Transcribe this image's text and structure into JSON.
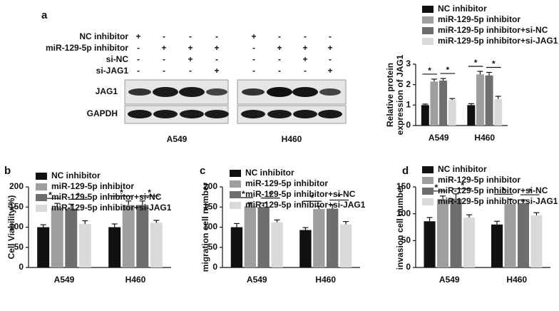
{
  "panel_labels": [
    "a",
    "b",
    "c",
    "d"
  ],
  "blot": {
    "rows": [
      {
        "label": "NC inhibitor",
        "signs": [
          "+",
          "-",
          "-",
          "-",
          "+",
          "-",
          "-",
          "-"
        ]
      },
      {
        "label": "miR-129-5p inhibitor",
        "signs": [
          "-",
          "+",
          "+",
          "+",
          "-",
          "+",
          "+",
          "+"
        ]
      },
      {
        "label": "si-NC",
        "signs": [
          "-",
          "-",
          "+",
          "-",
          "-",
          "-",
          "+",
          "-"
        ]
      },
      {
        "label": "si-JAG1",
        "signs": [
          "-",
          "-",
          "-",
          "+",
          "-",
          "-",
          "-",
          "+"
        ]
      }
    ],
    "proteins": [
      "JAG1",
      "GAPDH"
    ],
    "cell_lines": [
      "A549",
      "H460"
    ]
  },
  "chart_data": [
    {
      "type": "bar",
      "ylabel": [
        "Relative protein",
        "expression of JAG1"
      ],
      "categories": [
        "A549",
        "H460"
      ],
      "ylim": [
        0,
        3
      ],
      "yticks": [
        0,
        1,
        2,
        3
      ],
      "significance": "*",
      "series": [
        {
          "name": "NC inhibitor",
          "color": "#111111",
          "values": [
            1.0,
            1.0
          ],
          "errors": [
            0.05,
            0.07
          ]
        },
        {
          "name": "miR-129-5p inhibitor",
          "color": "#9e9e9e",
          "values": [
            2.15,
            2.5
          ],
          "errors": [
            0.12,
            0.15
          ]
        },
        {
          "name": "miR-129-5p inhibitor+si-NC",
          "color": "#6e6e6e",
          "values": [
            2.2,
            2.45
          ],
          "errors": [
            0.1,
            0.15
          ]
        },
        {
          "name": "miR-129-5p inhibitor+si-JAG1",
          "color": "#d9d9d9",
          "values": [
            1.25,
            1.3
          ],
          "errors": [
            0.07,
            0.13
          ]
        }
      ]
    },
    {
      "type": "bar",
      "ylabel": [
        "Cell Viability(%)"
      ],
      "categories": [
        "A549",
        "H460"
      ],
      "ylim": [
        0,
        200
      ],
      "yticks": [
        0,
        50,
        100,
        150,
        200
      ],
      "significance": "*",
      "series": [
        {
          "name": "NC inhibitor",
          "color": "#111111",
          "values": [
            100,
            100
          ],
          "errors": [
            6,
            8
          ]
        },
        {
          "name": "miR-129-5p inhibitor",
          "color": "#9e9e9e",
          "values": [
            148,
            155
          ],
          "errors": [
            11,
            10
          ]
        },
        {
          "name": "miR-129-5p inhibitor+si-NC",
          "color": "#6e6e6e",
          "values": [
            146,
            155
          ],
          "errors": [
            11,
            10
          ]
        },
        {
          "name": "miR-129-5p inhibitor+si-JAG1",
          "color": "#d9d9d9",
          "values": [
            108,
            111
          ],
          "errors": [
            8,
            6
          ]
        }
      ]
    },
    {
      "type": "bar",
      "ylabel": [
        "migration cell number"
      ],
      "categories": [
        "A549",
        "H460"
      ],
      "ylim": [
        0,
        200
      ],
      "yticks": [
        0,
        50,
        100,
        150,
        200
      ],
      "significance": "*",
      "series": [
        {
          "name": "NC inhibitor",
          "color": "#111111",
          "values": [
            100,
            93
          ],
          "errors": [
            9,
            6
          ]
        },
        {
          "name": "miR-129-5p inhibitor",
          "color": "#9e9e9e",
          "values": [
            152,
            145
          ],
          "errors": [
            9,
            7
          ]
        },
        {
          "name": "miR-129-5p inhibitor+si-NC",
          "color": "#6e6e6e",
          "values": [
            150,
            146
          ],
          "errors": [
            10,
            9
          ]
        },
        {
          "name": "miR-129-5p inhibitor+si-JAG1",
          "color": "#d9d9d9",
          "values": [
            112,
            107
          ],
          "errors": [
            6,
            7
          ]
        }
      ]
    },
    {
      "type": "bar",
      "ylabel": [
        "invasion cell number"
      ],
      "categories": [
        "A549",
        "H460"
      ],
      "ylim": [
        0,
        150
      ],
      "yticks": [
        0,
        50,
        100,
        150
      ],
      "significance": "*",
      "series": [
        {
          "name": "NC inhibitor",
          "color": "#111111",
          "values": [
            86,
            80
          ],
          "errors": [
            7,
            6
          ]
        },
        {
          "name": "miR-129-5p inhibitor",
          "color": "#9e9e9e",
          "values": [
            127,
            118
          ],
          "errors": [
            6,
            9
          ]
        },
        {
          "name": "miR-129-5p inhibitor+si-NC",
          "color": "#6e6e6e",
          "values": [
            128,
            120
          ],
          "errors": [
            9,
            6
          ]
        },
        {
          "name": "miR-129-5p inhibitor+si-JAG1",
          "color": "#d9d9d9",
          "values": [
            93,
            97
          ],
          "errors": [
            5,
            5
          ]
        }
      ]
    }
  ]
}
